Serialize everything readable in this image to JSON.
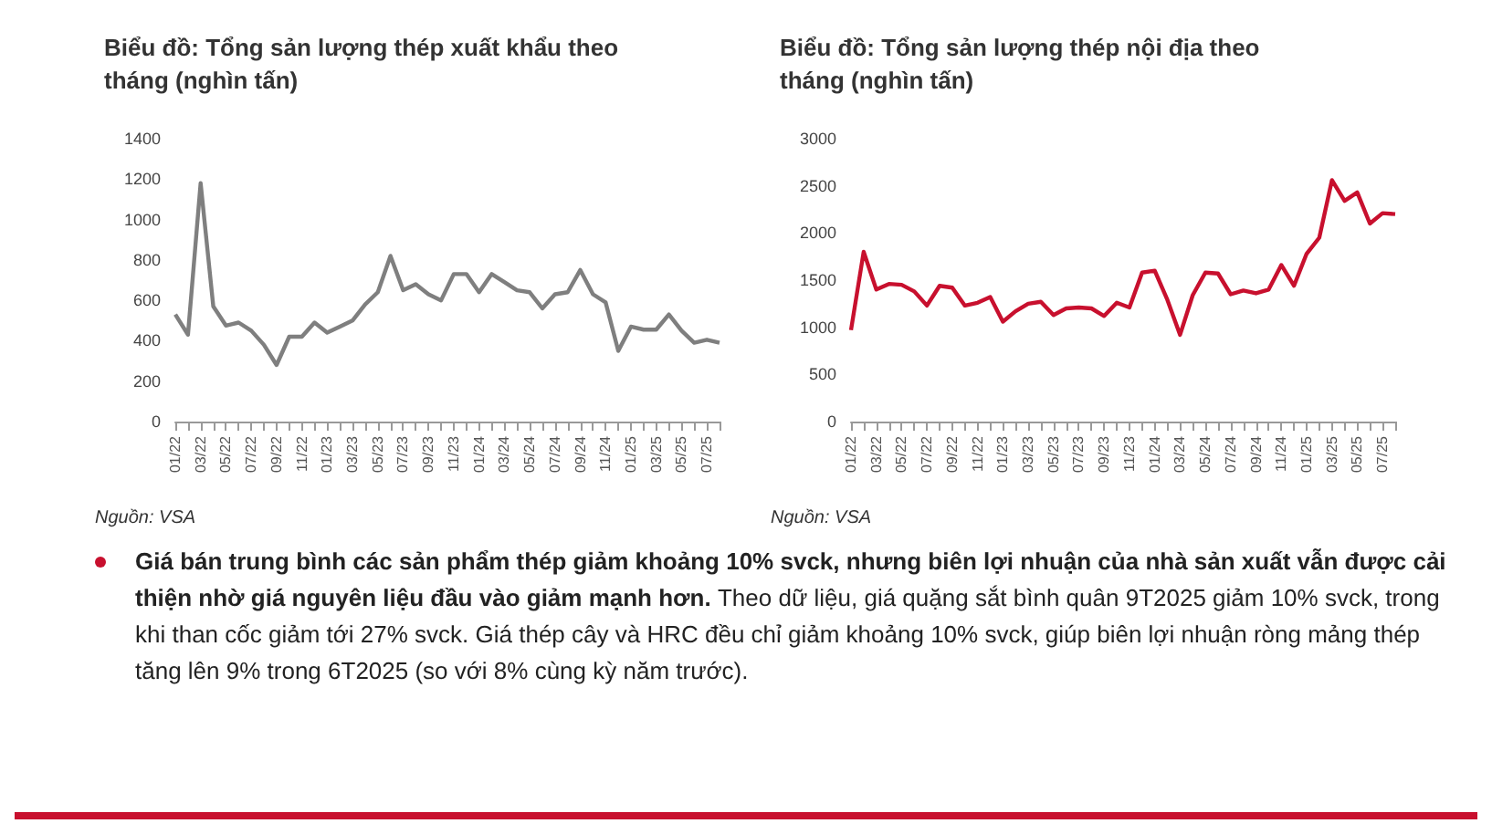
{
  "chart_data": [
    {
      "type": "line",
      "title": "Biểu đồ: Tổng sản lượng thép xuất khẩu theo tháng (nghìn tấn)",
      "categories": [
        "01/22",
        null,
        "03/22",
        null,
        "05/22",
        null,
        "07/22",
        null,
        "09/22",
        null,
        "11/22",
        null,
        "01/23",
        null,
        "03/23",
        null,
        "05/23",
        null,
        "07/23",
        null,
        "09/23",
        null,
        "11/23",
        null,
        "01/24",
        null,
        "03/24",
        null,
        "05/24",
        null,
        "07/24",
        null,
        "09/24",
        null,
        "11/24",
        null,
        "01/25",
        null,
        "03/25",
        null,
        "05/25",
        null,
        "07/25",
        null
      ],
      "series": [
        {
          "color": "#7f7f7f",
          "values": [
            530,
            430,
            1180,
            570,
            475,
            490,
            450,
            380,
            280,
            420,
            420,
            490,
            440,
            470,
            500,
            580,
            640,
            820,
            650,
            680,
            630,
            600,
            730,
            730,
            640,
            730,
            690,
            650,
            640,
            560,
            630,
            640,
            750,
            630,
            590,
            350,
            470,
            455,
            455,
            530,
            450,
            390,
            405,
            390
          ]
        }
      ],
      "ylim": [
        0,
        1400
      ],
      "yticks": [
        0,
        200,
        400,
        600,
        800,
        1000,
        1200,
        1400
      ],
      "grid": false,
      "marker": "none",
      "annotations": [
        "Nguồn: VSA"
      ]
    },
    {
      "type": "line",
      "title": "Biểu đồ: Tổng sản lượng thép nội địa theo tháng (nghìn tấn)",
      "categories": [
        "01/22",
        null,
        "03/22",
        null,
        "05/22",
        null,
        "07/22",
        null,
        "09/22",
        null,
        "11/22",
        null,
        "01/23",
        null,
        "03/23",
        null,
        "05/23",
        null,
        "07/23",
        null,
        "09/23",
        null,
        "11/23",
        null,
        "01/24",
        null,
        "03/24",
        null,
        "05/24",
        null,
        "07/24",
        null,
        "09/24",
        null,
        "11/24",
        null,
        "01/25",
        null,
        "03/25",
        null,
        "05/25",
        null,
        "07/25",
        null
      ],
      "series": [
        {
          "color": "#c8102e",
          "values": [
            970,
            1800,
            1400,
            1460,
            1450,
            1380,
            1230,
            1440,
            1420,
            1230,
            1260,
            1320,
            1060,
            1170,
            1250,
            1270,
            1130,
            1200,
            1210,
            1200,
            1120,
            1260,
            1210,
            1580,
            1600,
            1290,
            920,
            1340,
            1580,
            1570,
            1350,
            1390,
            1360,
            1400,
            1660,
            1440,
            1780,
            1950,
            2560,
            2340,
            2430,
            2100,
            2210,
            2200
          ]
        }
      ],
      "ylim": [
        0,
        3000
      ],
      "yticks": [
        0,
        500,
        1000,
        1500,
        2000,
        2500,
        3000
      ],
      "grid": false,
      "marker": "none",
      "annotations": [
        "Nguồn: VSA"
      ]
    },
    {
      "type": "other",
      "annotations": [
        "Giá bán trung bình các sản phẩm thép giảm khoảng 10% svck, nhưng biên lợi nhuận của nhà sản xuất vẫn được cải thiện nhờ giá nguyên liệu đầu vào giảm mạnh hơn.",
        "Theo dữ liệu, giá quặng sắt bình quân 9T2025 giảm 10% svck, trong khi than cốc giảm tới 27% svck. Giá thép cây và HRC đều chỉ giảm khoảng 10% svck, giúp biên lợi nhuận ròng mảng thép tăng lên 9% trong 6T2025 (so với 8% cùng kỳ năm trước)."
      ]
    }
  ]
}
